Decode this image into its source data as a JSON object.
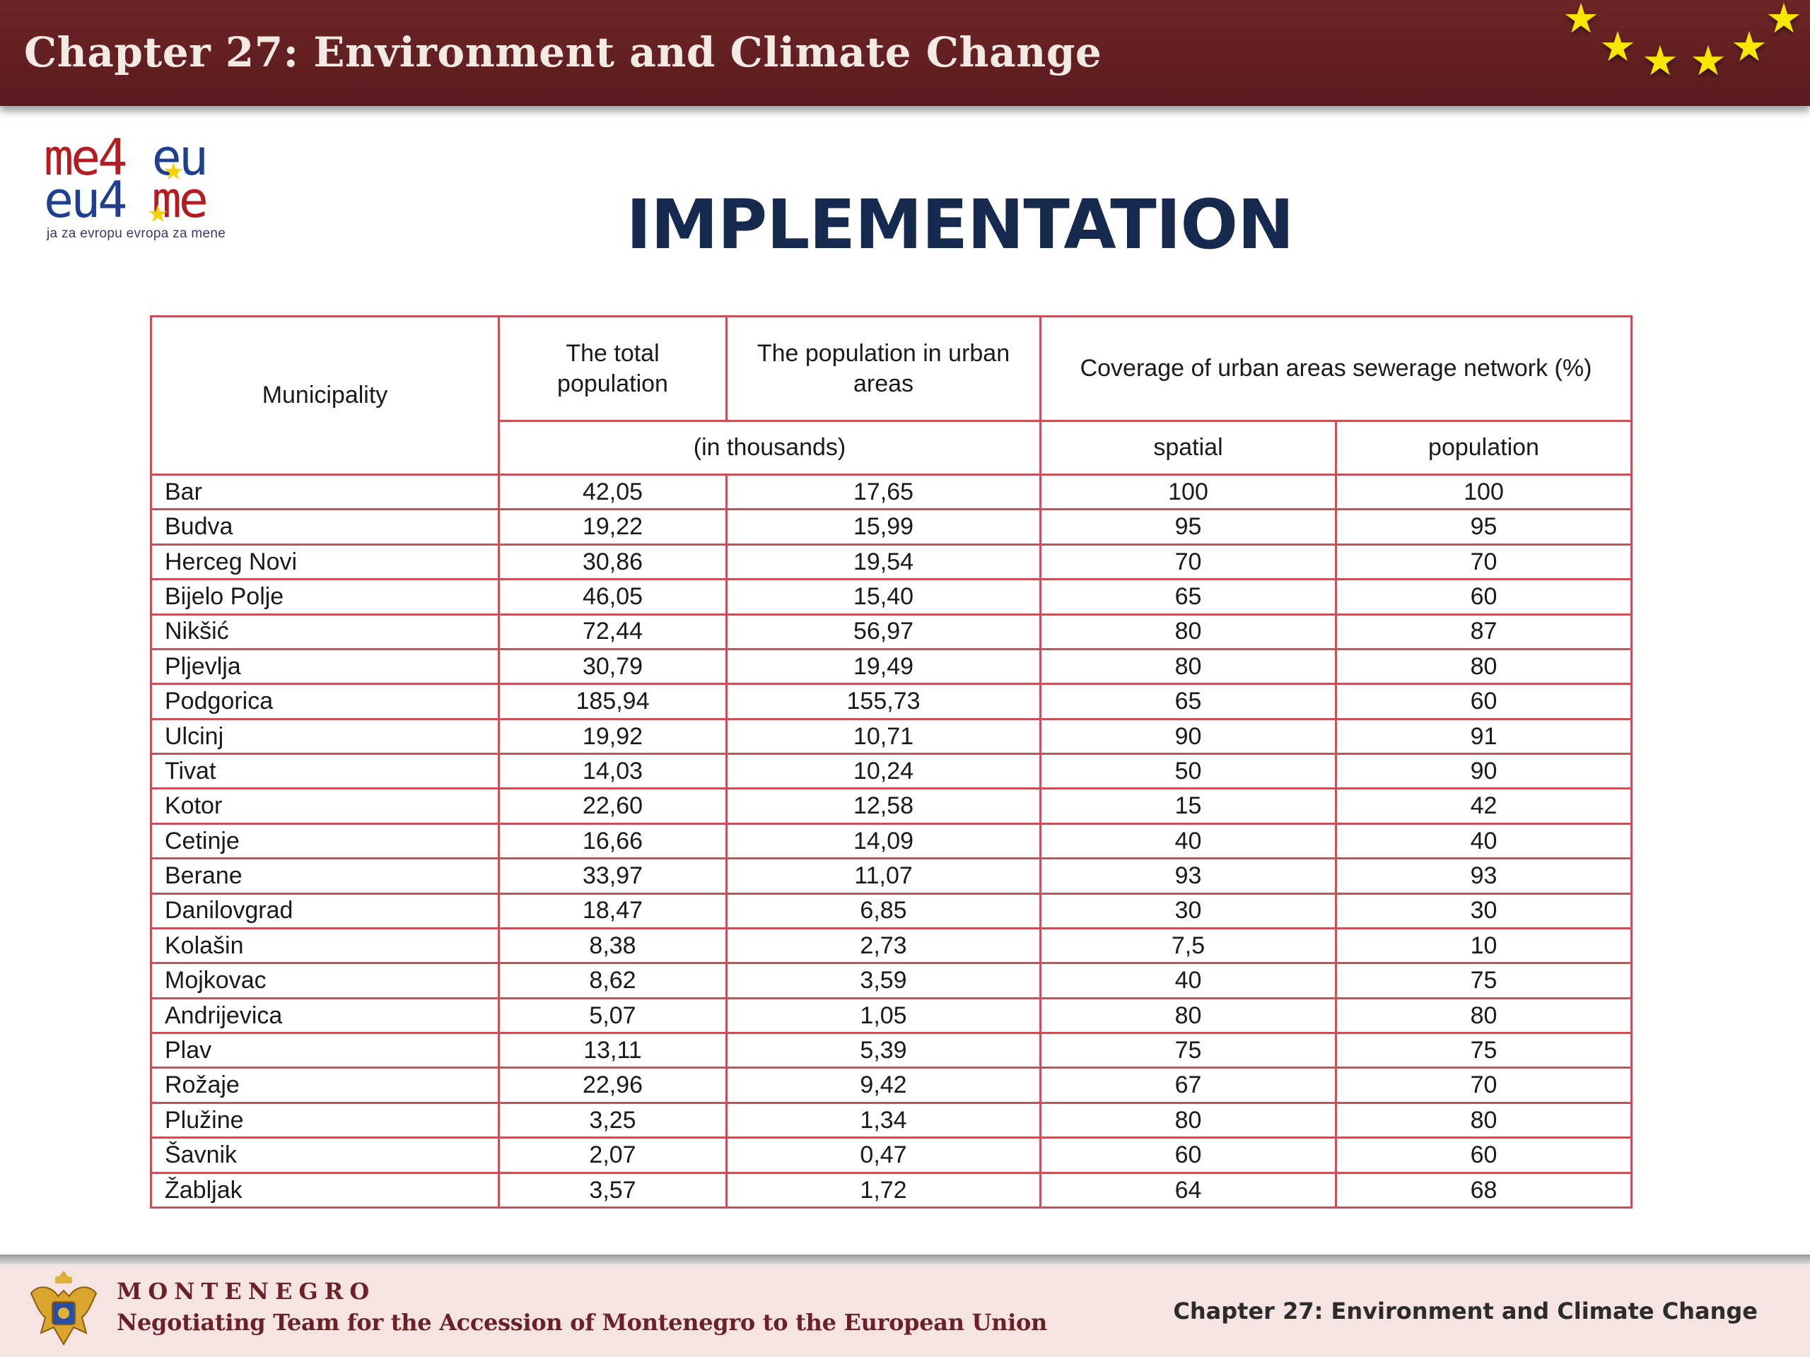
{
  "header": {
    "title": "Chapter 27: Environment and Climate Change"
  },
  "logo": {
    "line1_a": "me4",
    "line1_b": "eu",
    "line2_a": "eu4",
    "line2_b": "me",
    "tagline": "ja za evropu evropa za mene"
  },
  "page_title": "IMPLEMENTATION",
  "table": {
    "headers": {
      "municipality": "Municipality",
      "total_population": "The total population",
      "urban_population": "The population in urban areas",
      "coverage": "Coverage of urban areas sewerage network (%)",
      "units": "(in thousands)",
      "spatial": "spatial",
      "population": "population"
    },
    "rows": [
      {
        "municipality": "Bar",
        "total": "42,05",
        "urban": "17,65",
        "spatial": "100",
        "population": "100"
      },
      {
        "municipality": "Budva",
        "total": "19,22",
        "urban": "15,99",
        "spatial": "95",
        "population": "95"
      },
      {
        "municipality": "Herceg Novi",
        "total": "30,86",
        "urban": "19,54",
        "spatial": "70",
        "population": "70"
      },
      {
        "municipality": "Bijelo Polje",
        "total": "46,05",
        "urban": "15,40",
        "spatial": "65",
        "population": "60"
      },
      {
        "municipality": "Nikšić",
        "total": "72,44",
        "urban": "56,97",
        "spatial": "80",
        "population": "87"
      },
      {
        "municipality": "Pljevlja",
        "total": "30,79",
        "urban": "19,49",
        "spatial": "80",
        "population": "80"
      },
      {
        "municipality": "Podgorica",
        "total": "185,94",
        "urban": "155,73",
        "spatial": "65",
        "population": "60"
      },
      {
        "municipality": "Ulcinj",
        "total": "19,92",
        "urban": "10,71",
        "spatial": "90",
        "population": "91"
      },
      {
        "municipality": "Tivat",
        "total": "14,03",
        "urban": "10,24",
        "spatial": "50",
        "population": "90"
      },
      {
        "municipality": "Kotor",
        "total": "22,60",
        "urban": "12,58",
        "spatial": "15",
        "population": "42"
      },
      {
        "municipality": "Cetinje",
        "total": "16,66",
        "urban": "14,09",
        "spatial": "40",
        "population": "40"
      },
      {
        "municipality": "Berane",
        "total": "33,97",
        "urban": "11,07",
        "spatial": "93",
        "population": "93"
      },
      {
        "municipality": "Danilovgrad",
        "total": "18,47",
        "urban": "6,85",
        "spatial": "30",
        "population": "30"
      },
      {
        "municipality": "Kolašin",
        "total": "8,38",
        "urban": "2,73",
        "spatial": "7,5",
        "population": "10"
      },
      {
        "municipality": "Mojkovac",
        "total": "8,62",
        "urban": "3,59",
        "spatial": "40",
        "population": "75"
      },
      {
        "municipality": "Andrijevica",
        "total": "5,07",
        "urban": "1,05",
        "spatial": "80",
        "population": "80"
      },
      {
        "municipality": "Plav",
        "total": "13,11",
        "urban": "5,39",
        "spatial": "75",
        "population": "75"
      },
      {
        "municipality": "Rožaje",
        "total": "22,96",
        "urban": "9,42",
        "spatial": "67",
        "population": "70"
      },
      {
        "municipality": "Plužine",
        "total": "3,25",
        "urban": "1,34",
        "spatial": "80",
        "population": "80"
      },
      {
        "municipality": "Šavnik",
        "total": "2,07",
        "urban": "0,47",
        "spatial": "60",
        "population": "60"
      },
      {
        "municipality": "Žabljak",
        "total": "3,57",
        "urban": "1,72",
        "spatial": "64",
        "population": "68"
      }
    ]
  },
  "footer": {
    "country": "MONTENEGRO",
    "team": "Negotiating Team for the Accession of  Montenegro to the European Union",
    "chapter": "Chapter 27:  Environment and Climate Change"
  },
  "colors": {
    "header_bg": "#5e1e21",
    "star": "#f7e600",
    "title": "#16294e",
    "table_border": "#c8505a",
    "footer_bg": "#f6e4e2",
    "footer_text": "#6b2226"
  },
  "icons": {
    "stars": "eu-stars-icon",
    "crest": "montenegro-coat-of-arms-icon"
  }
}
